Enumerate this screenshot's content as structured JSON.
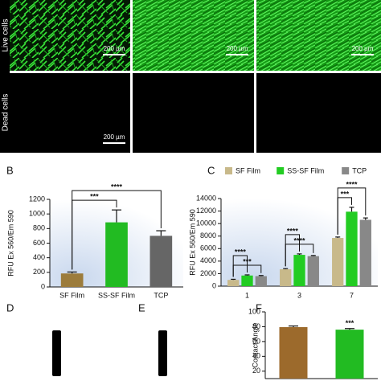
{
  "images": {
    "row_labels": [
      "Live cells",
      "Dead cells"
    ],
    "scale_bar": "200 µm"
  },
  "photos": [
    {
      "label": "D"
    },
    {
      "label": "E"
    }
  ],
  "chart_data": [
    {
      "type": "bar",
      "label": "B",
      "ylabel": "RFU Ex 560/Em 590",
      "categories": [
        "SF Film",
        "SS-SF Film",
        "TCP"
      ],
      "values": [
        185,
        885,
        700
      ],
      "errors": [
        20,
        170,
        70
      ],
      "colors": [
        "#9c7c3c",
        "#22bb22",
        "#666666"
      ],
      "ylim": [
        0,
        1200
      ],
      "yticks": [
        0,
        200,
        400,
        600,
        800,
        1000,
        1200
      ],
      "annotations": [
        {
          "text": "***",
          "from": 0,
          "to": 1
        },
        {
          "text": "****",
          "from": 0,
          "to": 2
        }
      ]
    },
    {
      "type": "grouped_bar",
      "label": "C",
      "ylabel": "RFU Ex 560/Em 590",
      "categories": [
        "1",
        "3",
        "7"
      ],
      "series": [
        {
          "name": "SF Film",
          "color": "#c8b98a",
          "values": [
            1000,
            2700,
            7700
          ],
          "errors": [
            100,
            100,
            150
          ]
        },
        {
          "name": "SS-SF Film",
          "color": "#22cc22",
          "values": [
            1700,
            5000,
            11900
          ],
          "errors": [
            100,
            150,
            700
          ]
        },
        {
          "name": "TCP",
          "color": "#888888",
          "values": [
            1600,
            4800,
            10600
          ],
          "errors": [
            100,
            100,
            300
          ]
        }
      ],
      "ylim": [
        0,
        14000
      ],
      "yticks": [
        0,
        2000,
        4000,
        6000,
        8000,
        10000,
        12000,
        14000
      ],
      "annotations": [
        {
          "text": "***",
          "category": 0,
          "from": 0,
          "to": 2
        },
        {
          "text": "****",
          "category": 0,
          "from": 0,
          "to": 1
        },
        {
          "text": "****",
          "category": 1,
          "from": 0,
          "to": 2
        },
        {
          "text": "****",
          "category": 1,
          "from": 0,
          "to": 1
        },
        {
          "text": "***",
          "category": 2,
          "from": 0,
          "to": 1
        },
        {
          "text": "****",
          "category": 2,
          "from": 0,
          "to": 2
        }
      ]
    },
    {
      "type": "bar",
      "label": "F",
      "ylabel": "Contact Angle",
      "values": [
        79.5,
        76
      ],
      "errors": [
        1.5,
        1.5
      ],
      "colors": [
        "#9c6a2c",
        "#22bb22"
      ],
      "ylim": [
        10,
        100
      ],
      "yticks": [
        20,
        40,
        60,
        80,
        100
      ],
      "annotations": [
        {
          "text": "***",
          "from": 1,
          "to": 1
        }
      ]
    }
  ]
}
